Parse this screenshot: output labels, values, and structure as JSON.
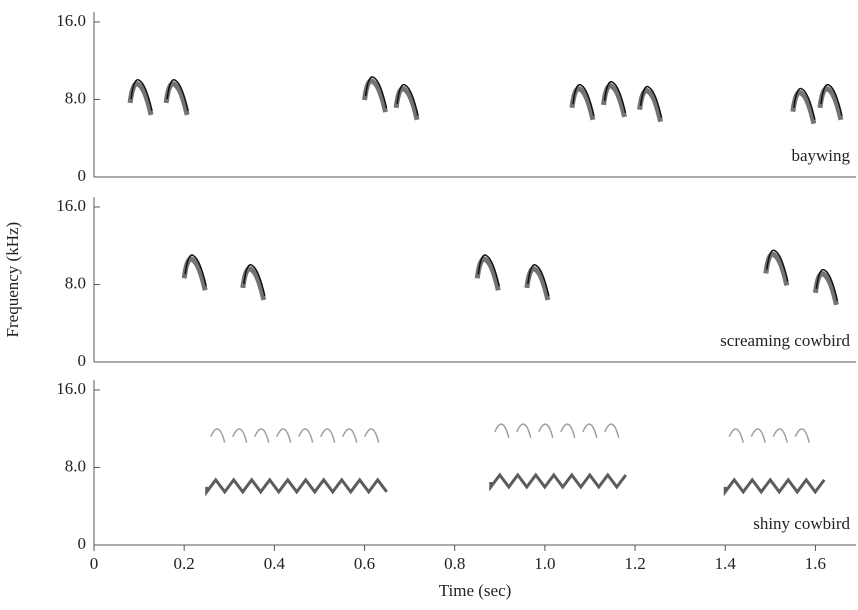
{
  "chart_data": [
    {
      "type": "spectrogram",
      "label": "baywing",
      "x": [
        0.1,
        0.18,
        0.62,
        0.69,
        1.08,
        1.15,
        1.23,
        1.57,
        1.63
      ],
      "values": [
        9.5,
        9.5,
        9.8,
        9.0,
        9.0,
        9.3,
        8.8,
        8.6,
        9.0
      ],
      "xlim": [
        0,
        1.69
      ],
      "ylim": [
        0,
        17
      ],
      "yticks": [
        0,
        {
          "value": 8,
          "label": "8.0"
        },
        {
          "value": 16,
          "label": "16.0"
        }
      ]
    },
    {
      "type": "spectrogram",
      "label": "screaming cowbird",
      "ylabel": "Frequency (kHz)",
      "x": [
        0.22,
        0.35,
        0.87,
        0.98,
        1.51,
        1.62
      ],
      "values": [
        10.5,
        9.5,
        10.5,
        9.5,
        11.0,
        9.0
      ],
      "xlim": [
        0,
        1.69
      ],
      "ylim": [
        0,
        17
      ],
      "yticks": [
        0,
        {
          "value": 8,
          "label": "8.0"
        },
        {
          "value": 16,
          "label": "16.0"
        }
      ]
    },
    {
      "type": "spectrogram",
      "label": "shiny cowbird",
      "xlabel": "Time (sec)",
      "x": [
        0.25,
        0.88,
        1.4
      ],
      "x_end": [
        0.66,
        1.18,
        1.62
      ],
      "values": [
        6.0,
        6.5,
        6.0
      ],
      "upper_values": [
        12.0,
        12.5,
        12.0
      ],
      "xlim": [
        0,
        1.69
      ],
      "ylim": [
        0,
        17
      ],
      "xticks": [
        0,
        0.2,
        0.4,
        0.6,
        0.8,
        {
          "value": 1,
          "label": "1.0"
        },
        1.2,
        1.4,
        1.6
      ],
      "yticks": [
        0,
        {
          "value": 8,
          "label": "8.0"
        },
        {
          "value": 16,
          "label": "16.0"
        }
      ]
    }
  ]
}
